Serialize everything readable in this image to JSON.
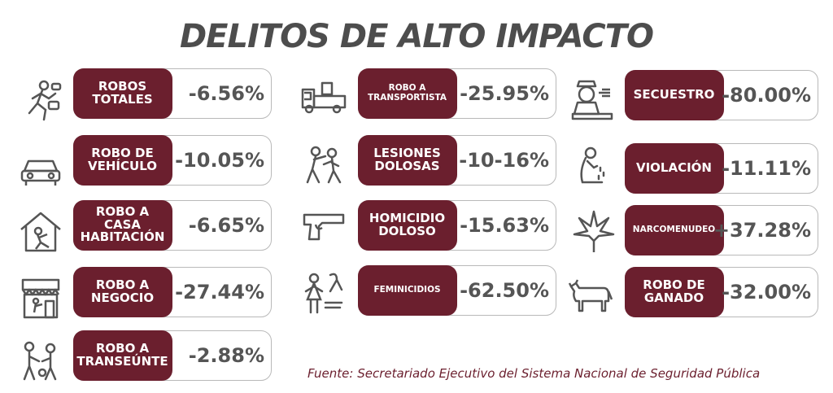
{
  "title": "DELITOS DE ALTO IMPACTO",
  "source": "Fuente: Secretariado Ejecutivo del Sistema Nacional de Seguridad Pública",
  "colors": {
    "accent": "#6b1f2e",
    "text": "#555555",
    "border": "#b9b9b9"
  },
  "crimes": [
    {
      "label": "ROBOS\nTOTALES",
      "value": "-6.56%",
      "icon": "running-thief-icon"
    },
    {
      "label": "ROBO DE\nVEHÍCULO",
      "value": "-10.05%",
      "icon": "car-icon"
    },
    {
      "label": "ROBO A\nCASA\nHABITACIÓN",
      "value": "-6.65%",
      "icon": "house-burglary-icon"
    },
    {
      "label": "ROBO A\nNEGOCIO",
      "value": "-27.44%",
      "icon": "storefront-icon"
    },
    {
      "label": "ROBO A\nTRANSEÚNTE",
      "value": "-2.88%",
      "icon": "mugging-icon"
    },
    {
      "label": "ROBO A\nTRANSPORTISTA",
      "value": "-25.95%",
      "icon": "truck-icon"
    },
    {
      "label": "LESIONES\nDOLOSAS",
      "value": "-10-16%",
      "icon": "assault-icon"
    },
    {
      "label": "HOMICIDIO\nDOLOSO",
      "value": "-15.63%",
      "icon": "gun-icon"
    },
    {
      "label": "FEMINICIDIOS",
      "value": "-62.50%",
      "icon": "woman-ribbon-icon"
    },
    {
      "label": "SECUESTRO",
      "value": "-80.00%",
      "icon": "kidnapping-icon"
    },
    {
      "label": "VIOLACIÓN",
      "value": "-11.11%",
      "icon": "crying-woman-icon"
    },
    {
      "label": "NARCOMENUDEO",
      "value": "+37.28%",
      "icon": "cannabis-leaf-icon"
    },
    {
      "label": "ROBO DE\nGANADO",
      "value": "-32.00%",
      "icon": "cow-icon"
    }
  ]
}
